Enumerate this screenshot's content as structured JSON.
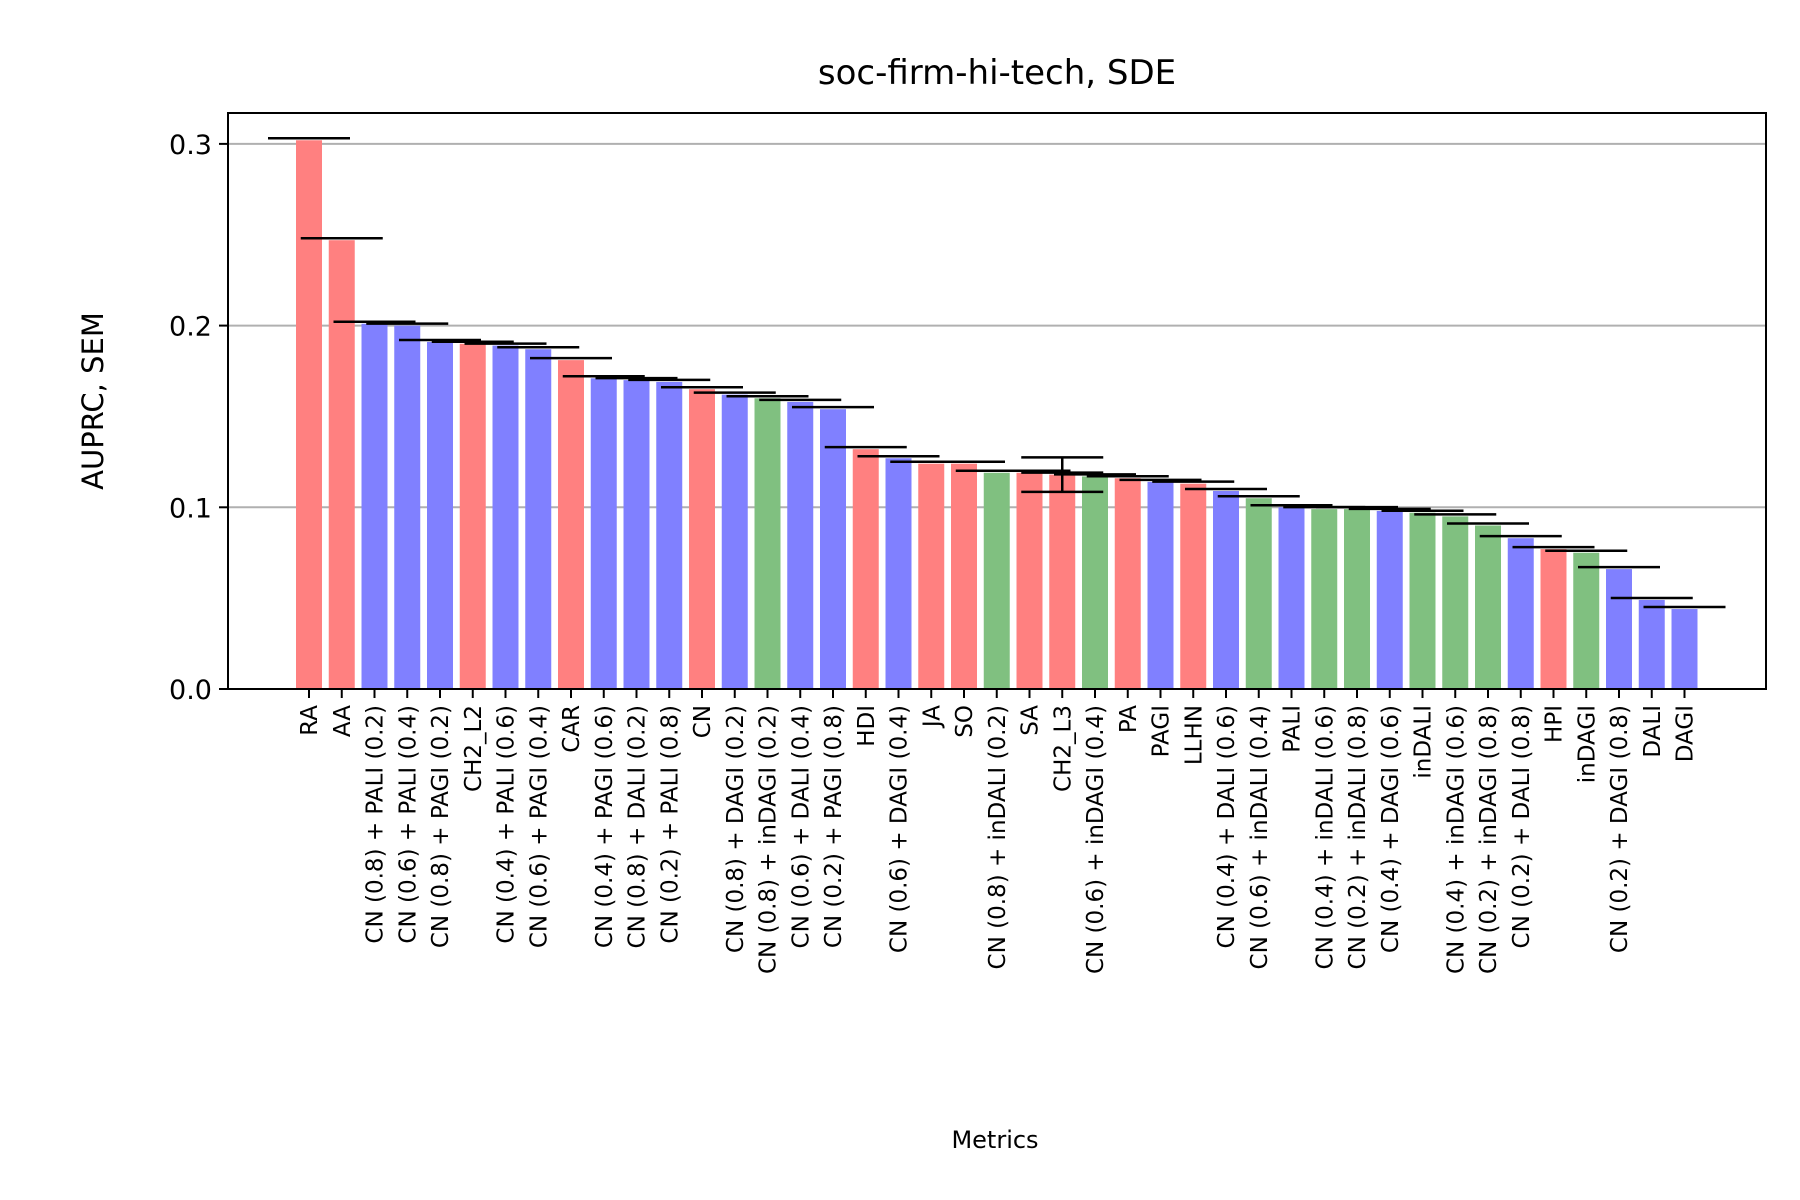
{
  "chart_data": {
    "type": "bar",
    "title": "soc-firm-hi-tech, SDE",
    "xlabel": "Metrics",
    "ylabel": "AUPRC, SEM",
    "ylim": [
      0,
      0.317
    ],
    "yticks": [
      "0.0",
      "0.1",
      "0.2",
      "0.3"
    ],
    "ytick_values": [
      0.0,
      0.1,
      0.2,
      0.3
    ],
    "grid": "horizontal",
    "colors": {
      "red": "#ff8080",
      "blue": "#8080ff",
      "green": "#80c080",
      "error": "#000000"
    },
    "categories": [
      "RA",
      "AA",
      "CN (0.8) + PALI (0.2)",
      "CN (0.6) + PALI (0.4)",
      "CN (0.8) + PAGI (0.2)",
      "CH2_L2",
      "CN (0.4) + PALI (0.6)",
      "CN (0.6) + PAGI (0.4)",
      "CAR",
      "CN (0.4) + PAGI (0.6)",
      "CN (0.8) + DALI (0.2)",
      "CN (0.2) + PALI (0.8)",
      "CN",
      "CN (0.8) + DAGI (0.2)",
      "CN (0.8) + inDAGI (0.2)",
      "CN (0.6) + DALI (0.4)",
      "CN (0.2) + PAGI (0.8)",
      "HDI",
      "CN (0.6) + DAGI (0.4)",
      "JA",
      "SO",
      "CN (0.8) + inDALI (0.2)",
      "SA",
      "CH2_L3",
      "CN (0.6) + inDAGI (0.4)",
      "PA",
      "PAGI",
      "LLHN",
      "CN (0.4) + DALI (0.6)",
      "CN (0.6) + inDALI (0.4)",
      "PALI",
      "CN (0.4) + inDALI (0.6)",
      "CN (0.2) + inDALI (0.8)",
      "CN (0.4) + DAGI (0.6)",
      "inDALI",
      "CN (0.4) + inDAGI (0.6)",
      "CN (0.2) + inDAGI (0.8)",
      "CN (0.2) + DALI (0.8)",
      "HPI",
      "inDAGI",
      "CN (0.2) + DAGI (0.8)",
      "DALI",
      "DAGI"
    ],
    "values": [
      0.302,
      0.247,
      0.201,
      0.2,
      0.191,
      0.19,
      0.189,
      0.187,
      0.181,
      0.171,
      0.17,
      0.169,
      0.165,
      0.162,
      0.16,
      0.158,
      0.154,
      0.132,
      0.127,
      0.124,
      0.124,
      0.119,
      0.119,
      0.118,
      0.117,
      0.116,
      0.114,
      0.113,
      0.109,
      0.105,
      0.1,
      0.099,
      0.099,
      0.098,
      0.097,
      0.095,
      0.09,
      0.083,
      0.077,
      0.075,
      0.066,
      0.049,
      0.044
    ],
    "errors": [
      0,
      0,
      0,
      0,
      0,
      0,
      0,
      0,
      0,
      0,
      0,
      0,
      0,
      0,
      0,
      0,
      0,
      0,
      0,
      0,
      0,
      0,
      0,
      0.0095,
      0,
      0,
      0,
      0,
      0,
      0,
      0,
      0,
      0,
      0,
      0,
      0,
      0,
      0,
      0,
      0,
      0,
      0,
      0
    ],
    "bar_colors": [
      "red",
      "red",
      "blue",
      "blue",
      "blue",
      "red",
      "blue",
      "blue",
      "red",
      "blue",
      "blue",
      "blue",
      "red",
      "blue",
      "green",
      "blue",
      "blue",
      "red",
      "blue",
      "red",
      "red",
      "green",
      "red",
      "red",
      "green",
      "red",
      "blue",
      "red",
      "blue",
      "green",
      "blue",
      "green",
      "green",
      "blue",
      "green",
      "green",
      "green",
      "blue",
      "red",
      "green",
      "blue",
      "blue",
      "blue"
    ]
  }
}
